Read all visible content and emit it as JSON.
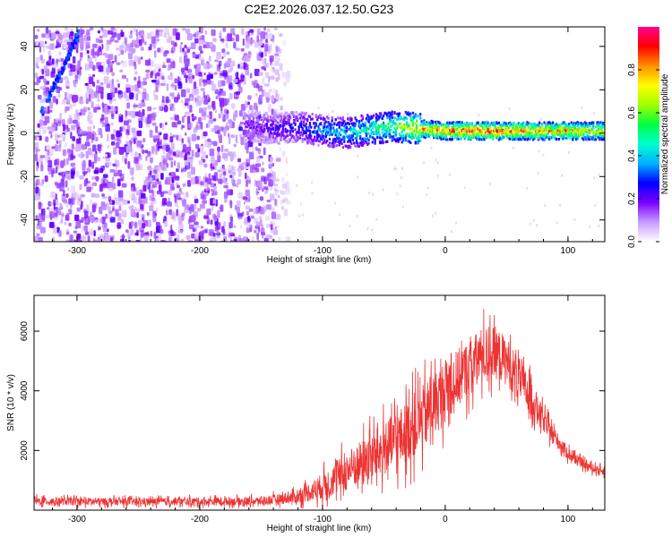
{
  "title": "C2E2.2026.037.12.50.G23",
  "chart_data": [
    {
      "type": "heatmap",
      "xlabel": "Height of straight line (km)",
      "ylabel": "Frequency (Hz)",
      "xlim": [
        -335,
        130
      ],
      "ylim": [
        -50,
        49
      ],
      "x_ticks": [
        -300,
        -200,
        -100,
        0,
        100
      ],
      "y_ticks": [
        -40,
        -20,
        0,
        20,
        40
      ],
      "colorbar": {
        "label": "Normalized spectral amplitude",
        "range": [
          0,
          1
        ],
        "ticks": [
          0.0,
          0.2,
          0.4,
          0.6,
          0.8
        ],
        "colors": [
          "#ffffff",
          "#c79cff",
          "#7a00ff",
          "#0000ff",
          "#00b0ff",
          "#00ffd0",
          "#00ff40",
          "#a0ff00",
          "#ffff00",
          "#ff9000",
          "#ff0000",
          "#ff0090"
        ]
      },
      "features": {
        "noise_region_km": [
          -335,
          -125
        ],
        "signal_trace": [
          {
            "x": -160,
            "freq": 3,
            "amplitude": 0.2
          },
          {
            "x": -140,
            "freq": 2,
            "amplitude": 0.25
          },
          {
            "x": -120,
            "freq": 3,
            "amplitude": 0.3
          },
          {
            "x": -100,
            "freq": 1,
            "amplitude": 0.4
          },
          {
            "x": -80,
            "freq": 0,
            "amplitude": 0.45
          },
          {
            "x": -60,
            "freq": 2,
            "amplitude": 0.55
          },
          {
            "x": -40,
            "freq": 3,
            "amplitude": 0.65
          },
          {
            "x": -20,
            "freq": 2,
            "amplitude": 0.85
          },
          {
            "x": 0,
            "freq": 1,
            "amplitude": 0.9
          },
          {
            "x": 20,
            "freq": 1,
            "amplitude": 0.95
          },
          {
            "x": 40,
            "freq": 1,
            "amplitude": 0.95
          },
          {
            "x": 60,
            "freq": 1,
            "amplitude": 0.9
          },
          {
            "x": 80,
            "freq": 1,
            "amplitude": 0.85
          },
          {
            "x": 100,
            "freq": 1,
            "amplitude": 0.85
          },
          {
            "x": 120,
            "freq": 1,
            "amplitude": 0.8
          }
        ],
        "diagonal_streak": [
          {
            "x": -330,
            "freq": 10
          },
          {
            "x": -300,
            "freq": 46
          }
        ]
      }
    },
    {
      "type": "line",
      "xlabel": "Height of straight line (km)",
      "ylabel": "SNR (10 * v/v)",
      "xlim": [
        -335,
        130
      ],
      "ylim": [
        0,
        7200
      ],
      "x_ticks": [
        -300,
        -200,
        -100,
        0,
        100
      ],
      "y_ticks": [
        2000,
        4000,
        6000
      ],
      "color": "#ee3333",
      "envelope": {
        "x": [
          -335,
          -250,
          -150,
          -120,
          -100,
          -80,
          -60,
          -40,
          -20,
          0,
          20,
          30,
          40,
          50,
          60,
          70,
          80,
          90,
          100,
          110,
          120,
          130
        ],
        "mean": [
          300,
          280,
          300,
          450,
          800,
          1300,
          1800,
          2300,
          3000,
          4000,
          4800,
          5200,
          5300,
          5000,
          4400,
          3800,
          3000,
          2400,
          1900,
          1600,
          1400,
          1300
        ],
        "spread": [
          250,
          220,
          250,
          400,
          800,
          1200,
          1500,
          1800,
          2000,
          1900,
          1700,
          1700,
          1600,
          1500,
          1300,
          1100,
          700,
          500,
          400,
          300,
          250,
          250
        ]
      }
    }
  ]
}
